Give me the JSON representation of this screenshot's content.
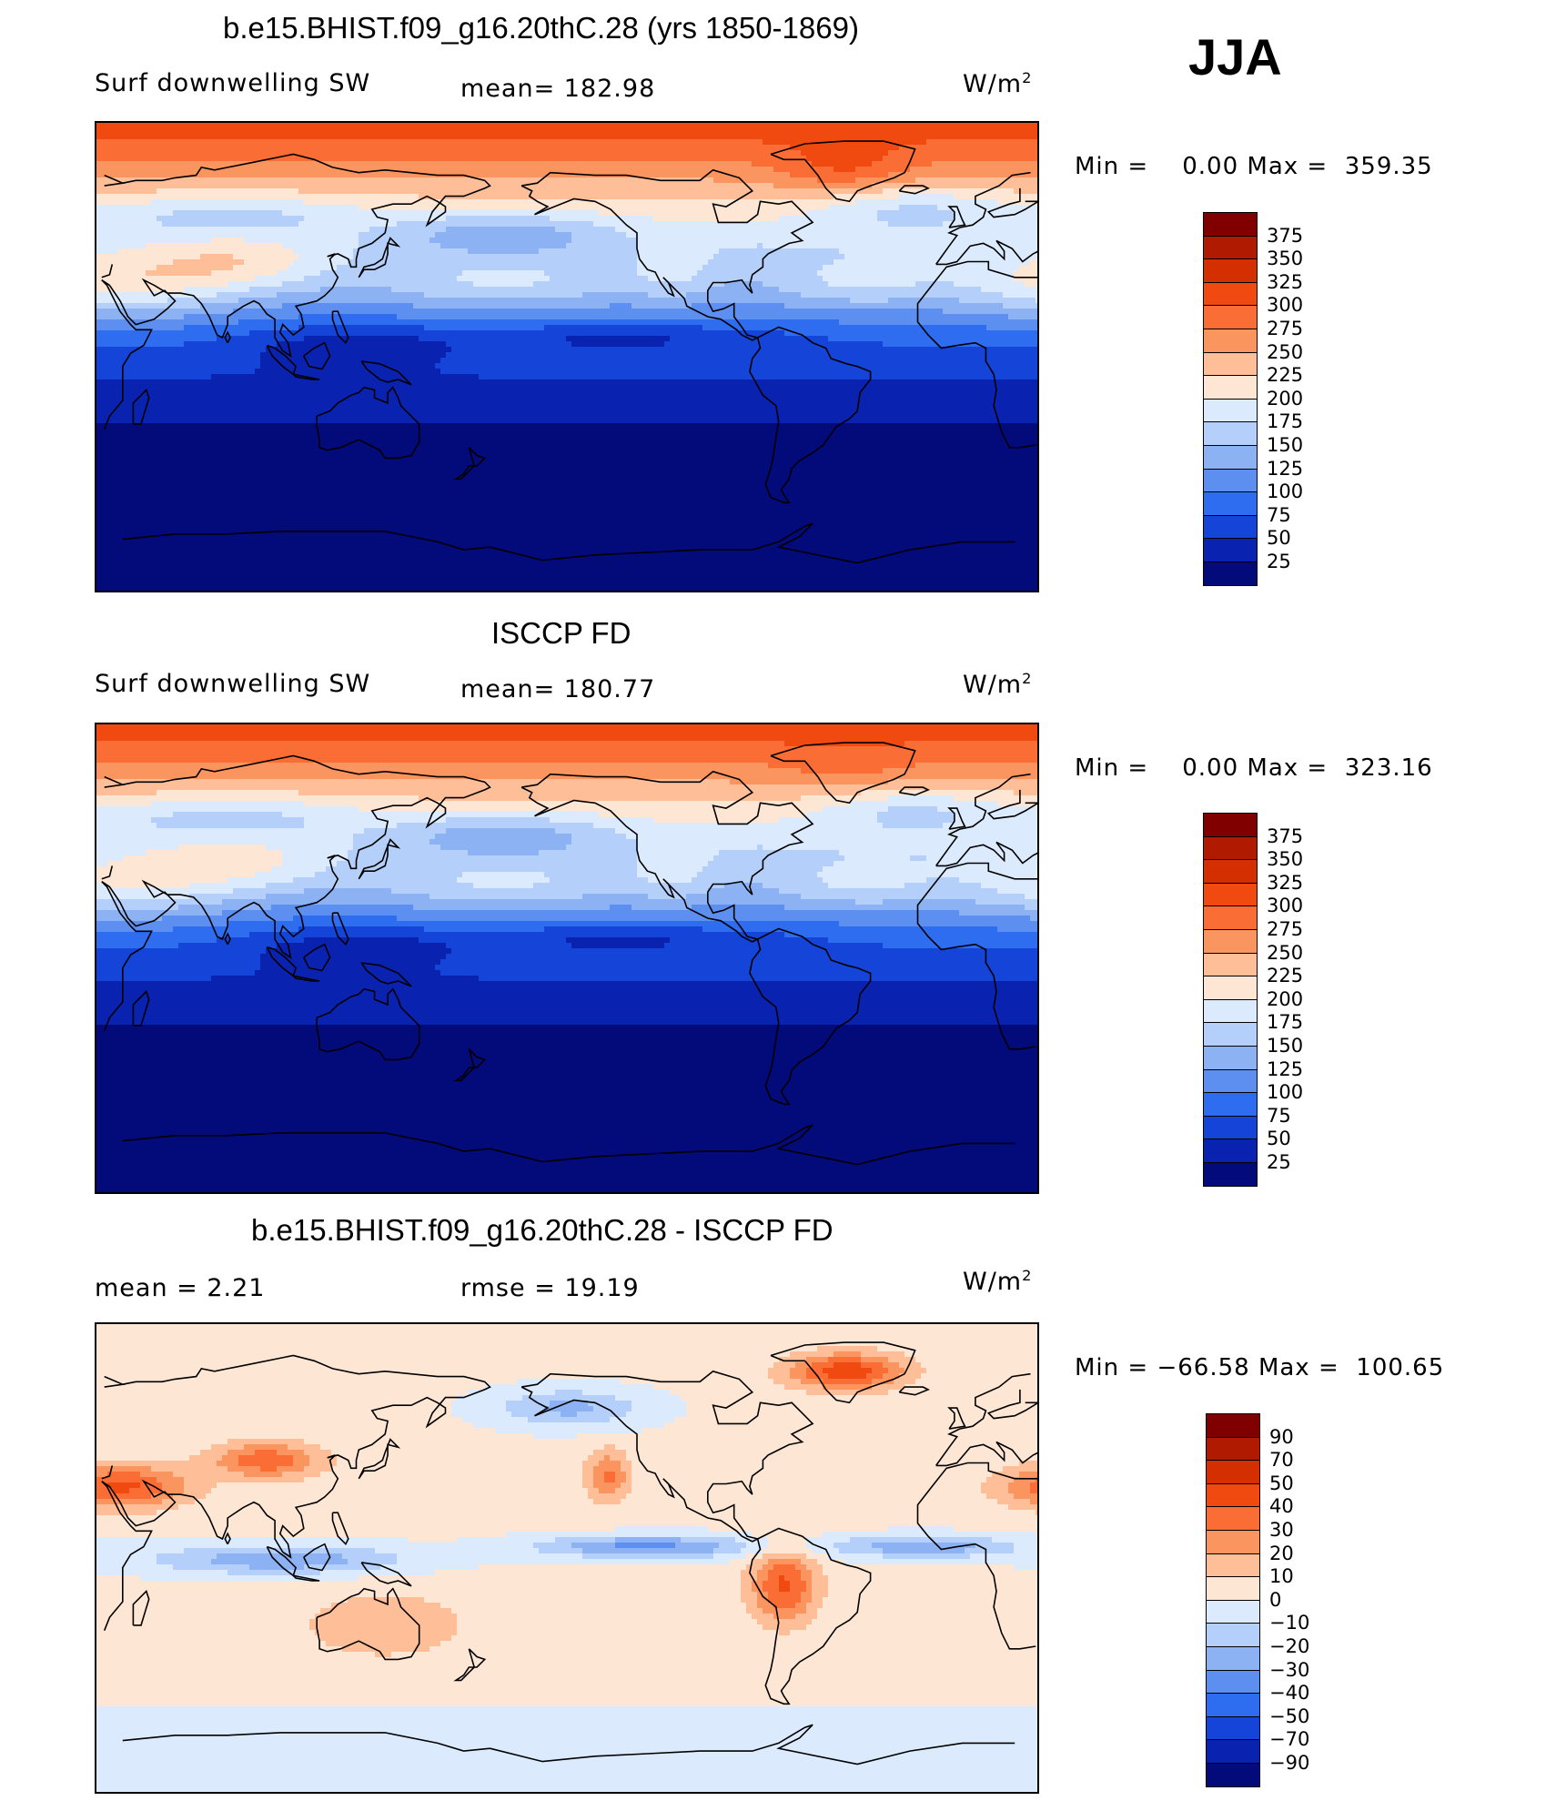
{
  "season": "JJA",
  "panels": [
    {
      "title": "b.e15.BHIST.f09_g16.20thC.28 (yrs 1850-1869)",
      "subtitle_left": "Surf  downwelling SW",
      "subtitle_center": "mean=  182.98",
      "units": "W/m",
      "units_sup": "2",
      "min_label": "Min  =",
      "min_value": "0.00",
      "max_label": "Max  =",
      "max_value": "359.35",
      "colorbar": {
        "labels": [
          "375",
          "350",
          "325",
          "300",
          "275",
          "250",
          "225",
          "200",
          "175",
          "150",
          "125",
          "100",
          "75",
          "50",
          "25"
        ],
        "colors": [
          "#800000",
          "#b01a00",
          "#d42f00",
          "#f04a10",
          "#fa6d35",
          "#fb9560",
          "#fdbe98",
          "#fee6d4",
          "#dbeafd",
          "#b4cff9",
          "#8cb2f4",
          "#5c8ff0",
          "#2e6cf0",
          "#1544d8",
          "#0a22b0",
          "#030a7a"
        ]
      },
      "map_field": "model"
    },
    {
      "title": "ISCCP FD",
      "subtitle_left": "Surf  downwelling SW",
      "subtitle_center": "mean=  180.77",
      "units": "W/m",
      "units_sup": "2",
      "min_label": "Min  =",
      "min_value": "0.00",
      "max_label": "Max  =",
      "max_value": "323.16",
      "colorbar": {
        "labels": [
          "375",
          "350",
          "325",
          "300",
          "275",
          "250",
          "225",
          "200",
          "175",
          "150",
          "125",
          "100",
          "75",
          "50",
          "25"
        ],
        "colors": [
          "#800000",
          "#b01a00",
          "#d42f00",
          "#f04a10",
          "#fa6d35",
          "#fb9560",
          "#fdbe98",
          "#fee6d4",
          "#dbeafd",
          "#b4cff9",
          "#8cb2f4",
          "#5c8ff0",
          "#2e6cf0",
          "#1544d8",
          "#0a22b0",
          "#030a7a"
        ]
      },
      "map_field": "obs"
    },
    {
      "title": "b.e15.BHIST.f09_g16.20thC.28 - ISCCP FD",
      "subtitle_left": "mean  =      2.21",
      "subtitle_center": "rmse  =     19.19",
      "units": "W/m",
      "units_sup": "2",
      "min_label": "Min  =",
      "min_value": "−66.58",
      "max_label": "Max  =",
      "max_value": "100.65",
      "colorbar": {
        "labels": [
          "90",
          "70",
          "50",
          "40",
          "30",
          "20",
          "10",
          "0",
          "−10",
          "−20",
          "−30",
          "−40",
          "−50",
          "−70",
          "−90"
        ],
        "colors": [
          "#800000",
          "#b01a00",
          "#d42f00",
          "#f04a10",
          "#fa6d35",
          "#fb9560",
          "#fdbe98",
          "#fee6d4",
          "#dbeafd",
          "#b4cff9",
          "#8cb2f4",
          "#5c8ff0",
          "#2e6cf0",
          "#1544d8",
          "#0a22b0",
          "#030a7a"
        ]
      },
      "map_field": "diff"
    }
  ]
}
